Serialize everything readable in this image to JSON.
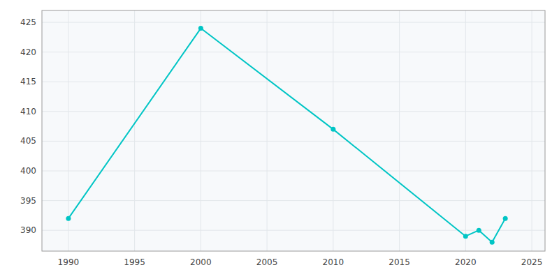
{
  "chart_data": {
    "type": "line",
    "x": [
      1990,
      2000,
      2010,
      2020,
      2021,
      2022,
      2023
    ],
    "values": [
      392,
      424,
      407,
      389,
      390,
      388,
      392
    ],
    "color": "#00C5C5",
    "marker": "circle",
    "xlim": [
      1988,
      2026
    ],
    "ylim": [
      386.5,
      427
    ],
    "xticks": [
      1990,
      1995,
      2000,
      2005,
      2010,
      2015,
      2020,
      2025
    ],
    "yticks": [
      390,
      395,
      400,
      405,
      410,
      415,
      420,
      425
    ],
    "grid": true
  }
}
